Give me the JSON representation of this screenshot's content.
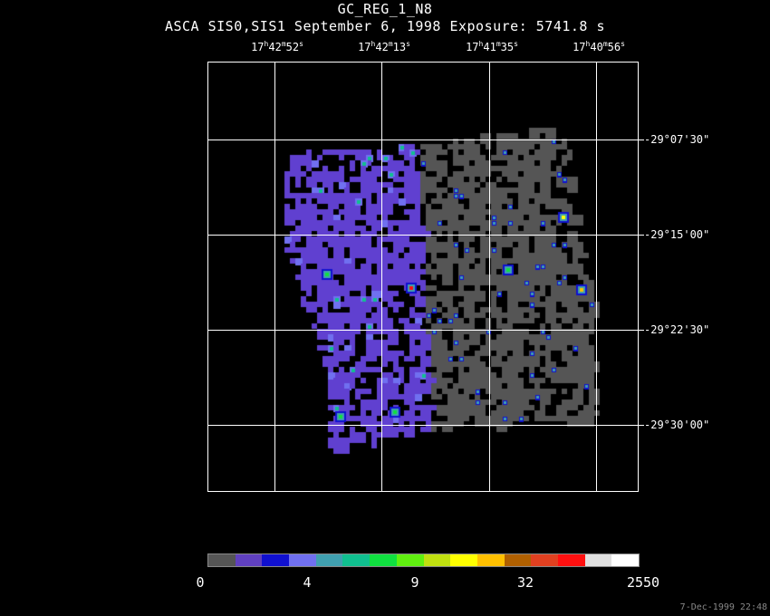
{
  "header": {
    "title": "GC_REG_1_N8",
    "subtitle": "ASCA SIS0,SIS1 September 6, 1998 Exposure: 5741.8 s"
  },
  "ra_labels": [
    {
      "h": "17",
      "m": "42",
      "s": "52"
    },
    {
      "h": "17",
      "m": "42",
      "s": "13"
    },
    {
      "h": "17",
      "m": "41",
      "s": "35"
    },
    {
      "h": "17",
      "m": "40",
      "s": "56"
    }
  ],
  "dec_labels": [
    "-29°07'30\"",
    "-29°15'00\"",
    "-29°22'30\"",
    "-29°30'00\""
  ],
  "colorbar": {
    "colors": [
      "#555555",
      "#6040c0",
      "#1010d0",
      "#7070f0",
      "#40a0b0",
      "#10c090",
      "#10e040",
      "#60f010",
      "#c0e010",
      "#ffff00",
      "#ffc000",
      "#b06000",
      "#e04020",
      "#ff1010",
      "#e0e0e0",
      "#ffffff"
    ],
    "tick_labels": [
      "0",
      "4",
      "9",
      "32",
      "2550"
    ]
  },
  "colors": {
    "background": "#000000",
    "grid": "#ffffff",
    "diffuse_left": "#6040d0",
    "diffuse_right": "#555555"
  },
  "timestamp": "7-Dec-1999 22:48"
}
